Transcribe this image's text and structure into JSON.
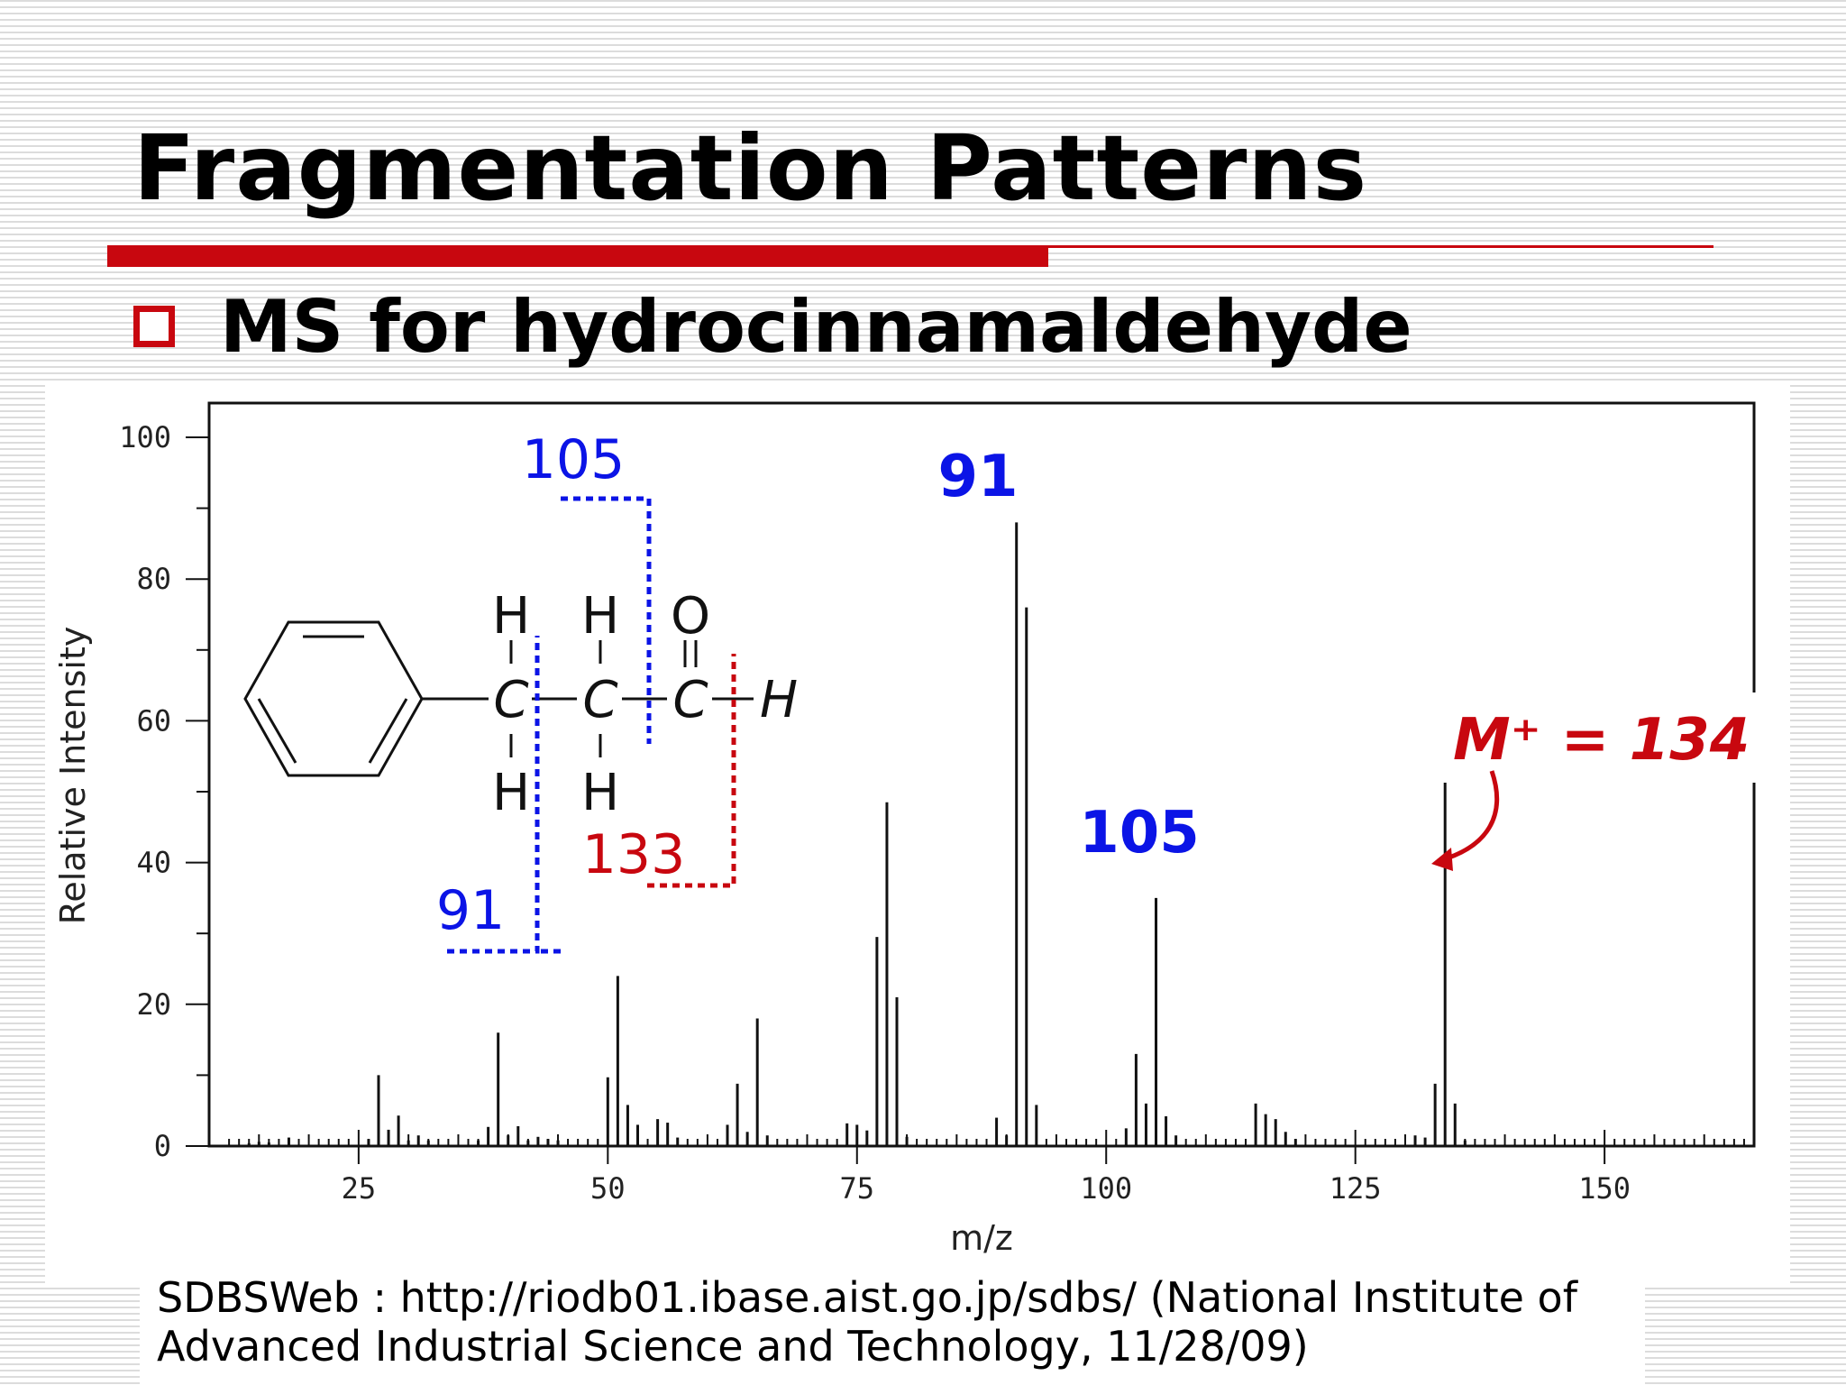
{
  "slide": {
    "title": "Fragmentation Patterns",
    "bullet": "MS for hydrocinnamaldehyde",
    "citation_line1": "SDBSWeb : http://riodb01.ibase.aist.go.jp/sdbs/ (National Institute of",
    "citation_line2": "Advanced Industrial Science and Technology, 11/28/09)",
    "accent_color": "#c8070f"
  },
  "chart_data": {
    "type": "bar",
    "xlabel": "m/z",
    "ylabel": "Relative Intensity",
    "xlim": [
      10,
      165
    ],
    "ylim": [
      0,
      100
    ],
    "x_ticks": [
      25,
      50,
      75,
      100,
      125,
      150
    ],
    "y_ticks": [
      0,
      20,
      40,
      60,
      80,
      100
    ],
    "grid": false,
    "peaks": [
      {
        "mz": 14,
        "intensity": 0.4
      },
      {
        "mz": 15,
        "intensity": 0.6
      },
      {
        "mz": 16,
        "intensity": 0.5
      },
      {
        "mz": 18,
        "intensity": 1.2
      },
      {
        "mz": 26,
        "intensity": 1.0
      },
      {
        "mz": 27,
        "intensity": 10
      },
      {
        "mz": 28,
        "intensity": 2.3
      },
      {
        "mz": 29,
        "intensity": 4.3
      },
      {
        "mz": 30,
        "intensity": 0.8
      },
      {
        "mz": 31,
        "intensity": 1.5
      },
      {
        "mz": 32,
        "intensity": 0.8
      },
      {
        "mz": 37,
        "intensity": 0.8
      },
      {
        "mz": 38,
        "intensity": 2.7
      },
      {
        "mz": 39,
        "intensity": 16
      },
      {
        "mz": 40,
        "intensity": 1.5
      },
      {
        "mz": 41,
        "intensity": 2.8
      },
      {
        "mz": 42,
        "intensity": 0.8
      },
      {
        "mz": 43,
        "intensity": 1.3
      },
      {
        "mz": 44,
        "intensity": 1.0
      },
      {
        "mz": 45,
        "intensity": 0.8
      },
      {
        "mz": 50,
        "intensity": 9.7
      },
      {
        "mz": 51,
        "intensity": 24
      },
      {
        "mz": 52,
        "intensity": 5.8
      },
      {
        "mz": 53,
        "intensity": 3.0
      },
      {
        "mz": 55,
        "intensity": 3.8
      },
      {
        "mz": 56,
        "intensity": 3.3
      },
      {
        "mz": 57,
        "intensity": 1.2
      },
      {
        "mz": 62,
        "intensity": 3.0
      },
      {
        "mz": 63,
        "intensity": 8.8
      },
      {
        "mz": 64,
        "intensity": 2.0
      },
      {
        "mz": 65,
        "intensity": 18
      },
      {
        "mz": 66,
        "intensity": 1.5
      },
      {
        "mz": 74,
        "intensity": 3.2
      },
      {
        "mz": 75,
        "intensity": 3.0
      },
      {
        "mz": 76,
        "intensity": 2.2
      },
      {
        "mz": 77,
        "intensity": 29.5
      },
      {
        "mz": 78,
        "intensity": 48.5
      },
      {
        "mz": 79,
        "intensity": 21
      },
      {
        "mz": 80,
        "intensity": 1.3
      },
      {
        "mz": 89,
        "intensity": 4.0
      },
      {
        "mz": 90,
        "intensity": 1.5
      },
      {
        "mz": 91,
        "intensity": 88
      },
      {
        "mz": 92,
        "intensity": 76
      },
      {
        "mz": 93,
        "intensity": 5.8
      },
      {
        "mz": 102,
        "intensity": 2.5
      },
      {
        "mz": 103,
        "intensity": 13
      },
      {
        "mz": 104,
        "intensity": 6.0
      },
      {
        "mz": 105,
        "intensity": 35
      },
      {
        "mz": 106,
        "intensity": 4.2
      },
      {
        "mz": 107,
        "intensity": 1.5
      },
      {
        "mz": 115,
        "intensity": 6.0
      },
      {
        "mz": 116,
        "intensity": 4.5
      },
      {
        "mz": 117,
        "intensity": 3.8
      },
      {
        "mz": 118,
        "intensity": 2.0
      },
      {
        "mz": 119,
        "intensity": 1.0
      },
      {
        "mz": 131,
        "intensity": 1.5
      },
      {
        "mz": 132,
        "intensity": 1.2
      },
      {
        "mz": 133,
        "intensity": 8.8
      },
      {
        "mz": 134,
        "intensity": 58.5
      },
      {
        "mz": 135,
        "intensity": 6.0
      },
      {
        "mz": 136,
        "intensity": 0.8
      }
    ],
    "annotations": {
      "peak_91": "91",
      "peak_105": "105",
      "molecular_ion": "M⁺ = 134",
      "frag_105": "105",
      "frag_91": "91",
      "frag_133": "133"
    },
    "structure_labels": {
      "h": "H",
      "c": "C",
      "c_italic": "C",
      "o": "O"
    },
    "colors": {
      "blue": "#0b14e6",
      "red": "#c8070f",
      "axis": "#111111"
    }
  }
}
